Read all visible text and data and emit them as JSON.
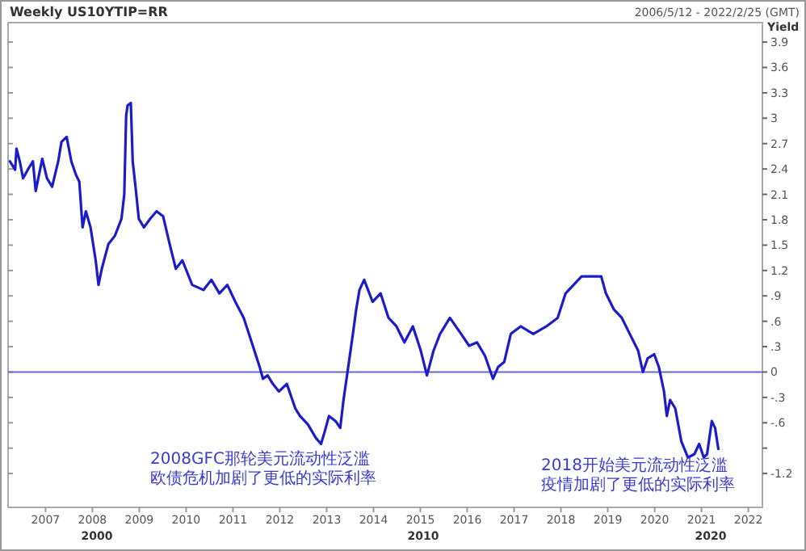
{
  "chart_data": {
    "type": "line",
    "title": "Weekly US10YTIP=RR",
    "subtitle": "2006/5/12 - 2022/2/25 (GMT)",
    "ylabel": "Yield",
    "annotations": [
      "2008GFC那轮美元流动性泛滥",
      "欧债危机加剧了更低的实际利率",
      "2018开始美元流动性泛滥",
      "疫情加剧了更低的实际利率",
      "2000",
      "2010",
      "2020"
    ],
    "xlim": [
      2006.2,
      2022.3
    ],
    "xticks": [
      2007,
      2008,
      2009,
      2010,
      2011,
      2012,
      2013,
      2014,
      2015,
      2016,
      2017,
      2018,
      2019,
      2020,
      2021,
      2022
    ],
    "ylim": [
      -1.6,
      4.13
    ],
    "yticks": [
      {
        "value": -1.2,
        "label": "-1.2"
      },
      {
        "value": -0.9,
        "label": null
      },
      {
        "value": -0.6,
        "label": "-.6"
      },
      {
        "value": -0.3,
        "label": "-.3"
      },
      0,
      {
        "value": 0.3,
        "label": ".3"
      },
      {
        "value": 0.6,
        "label": ".6"
      },
      {
        "value": 0.9,
        "label": ".9"
      },
      1.2,
      1.5,
      1.8,
      2.1,
      2.4,
      2.7,
      3,
      3.3,
      3.6,
      3.9
    ],
    "ref_lines": [
      {
        "axis": "y",
        "value": 0,
        "color": "#6a6ac8"
      }
    ],
    "grid": false,
    "marker": "none",
    "line_style": "solid",
    "series": [
      {
        "color": "#1c1cc8",
        "x": [
          2006.24,
          2006.35,
          2006.38,
          2006.45,
          2006.52,
          2006.62,
          2006.73,
          2006.79,
          2006.93,
          2007.03,
          2007.14,
          2007.27,
          2007.34,
          2007.45,
          2007.55,
          2007.65,
          2007.72,
          2007.79,
          2007.86,
          2007.96,
          2008.07,
          2008.13,
          2008.2,
          2008.34,
          2008.48,
          2008.62,
          2008.68,
          2008.72,
          2008.75,
          2008.82,
          2008.86,
          2008.92,
          2008.99,
          2009.1,
          2009.23,
          2009.37,
          2009.51,
          2009.65,
          2009.78,
          2009.92,
          2010.13,
          2010.37,
          2010.54,
          2010.71,
          2010.88,
          2011.05,
          2011.23,
          2011.4,
          2011.57,
          2011.64,
          2011.74,
          2011.85,
          2011.98,
          2012.15,
          2012.33,
          2012.43,
          2012.6,
          2012.77,
          2012.88,
          2012.95,
          2013.05,
          2013.19,
          2013.29,
          2013.36,
          2013.46,
          2013.56,
          2013.63,
          2013.7,
          2013.8,
          2013.98,
          2014.15,
          2014.32,
          2014.49,
          2014.66,
          2014.84,
          2015.01,
          2015.14,
          2015.28,
          2015.42,
          2015.63,
          2015.87,
          2016.04,
          2016.21,
          2016.38,
          2016.55,
          2016.66,
          2016.79,
          2016.93,
          2017.14,
          2017.41,
          2017.69,
          2017.93,
          2018.1,
          2018.44,
          2018.86,
          2018.96,
          2019.13,
          2019.3,
          2019.47,
          2019.65,
          2019.75,
          2019.85,
          2019.99,
          2020.09,
          2020.2,
          2020.26,
          2020.33,
          2020.44,
          2020.57,
          2020.71,
          2020.85,
          2020.95,
          2021.05,
          2021.12,
          2021.22,
          2021.29,
          2021.36
        ],
        "values": [
          2.49,
          2.39,
          2.64,
          2.49,
          2.29,
          2.39,
          2.49,
          2.14,
          2.52,
          2.29,
          2.19,
          2.49,
          2.72,
          2.78,
          2.49,
          2.33,
          2.25,
          1.71,
          1.9,
          1.71,
          1.32,
          1.03,
          1.22,
          1.51,
          1.61,
          1.81,
          2.1,
          3.03,
          3.15,
          3.18,
          2.49,
          2.19,
          1.81,
          1.71,
          1.81,
          1.9,
          1.84,
          1.51,
          1.22,
          1.32,
          1.03,
          0.97,
          1.09,
          0.93,
          1.03,
          0.83,
          0.64,
          0.35,
          0.06,
          -0.08,
          -0.04,
          -0.14,
          -0.23,
          -0.14,
          -0.43,
          -0.52,
          -0.62,
          -0.78,
          -0.85,
          -0.72,
          -0.52,
          -0.58,
          -0.66,
          -0.33,
          0.06,
          0.45,
          0.74,
          0.97,
          1.09,
          0.83,
          0.93,
          0.64,
          0.54,
          0.35,
          0.54,
          0.25,
          -0.04,
          0.25,
          0.45,
          0.64,
          0.45,
          0.31,
          0.35,
          0.19,
          -0.08,
          0.06,
          0.12,
          0.45,
          0.54,
          0.45,
          0.54,
          0.64,
          0.93,
          1.13,
          1.13,
          0.93,
          0.74,
          0.64,
          0.45,
          0.25,
          0,
          0.16,
          0.21,
          0.06,
          -0.23,
          -0.52,
          -0.33,
          -0.43,
          -0.82,
          -1.01,
          -0.97,
          -0.85,
          -1.01,
          -0.97,
          -0.58,
          -0.66,
          -0.91
        ]
      }
    ]
  }
}
